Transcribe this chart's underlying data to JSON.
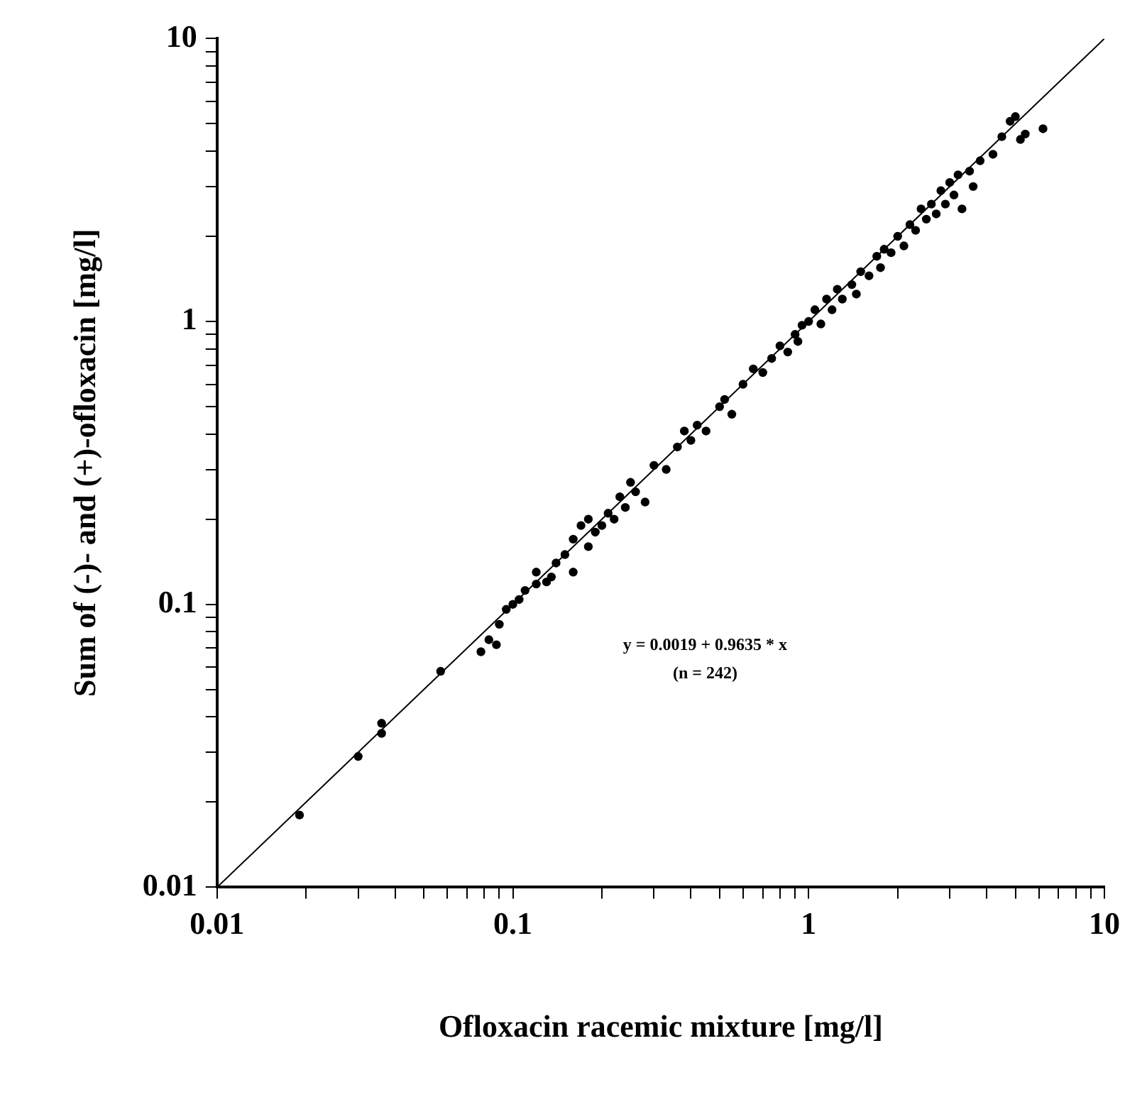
{
  "chart_data": {
    "type": "scatter",
    "xlabel": "Ofloxacin racemic mixture [mg/l]",
    "ylabel": "Sum of (-)- and (+)-ofloxacin [mg/l]",
    "annotations": [
      "y = 0.0019 + 0.9635 * x",
      "(n = 242)"
    ],
    "log": "xy",
    "grid": false,
    "legend": false,
    "marker": "circle",
    "xlim": [
      0.01,
      10
    ],
    "ylim": [
      0.01,
      10
    ],
    "xticks": [
      0.01,
      {
        "value": 0.02,
        "label": null
      },
      {
        "value": 0.03,
        "label": null
      },
      {
        "value": 0.04,
        "label": null
      },
      {
        "value": 0.05,
        "label": null
      },
      {
        "value": 0.06,
        "label": null
      },
      {
        "value": 0.07,
        "label": null
      },
      {
        "value": 0.08,
        "label": null
      },
      {
        "value": 0.09,
        "label": null
      },
      0.1,
      {
        "value": 0.2,
        "label": null
      },
      {
        "value": 0.3,
        "label": null
      },
      {
        "value": 0.4,
        "label": null
      },
      {
        "value": 0.5,
        "label": null
      },
      {
        "value": 0.6,
        "label": null
      },
      {
        "value": 0.7,
        "label": null
      },
      {
        "value": 0.8,
        "label": null
      },
      {
        "value": 0.9,
        "label": null
      },
      1,
      {
        "value": 2,
        "label": null
      },
      {
        "value": 3,
        "label": null
      },
      {
        "value": 4,
        "label": null
      },
      {
        "value": 5,
        "label": null
      },
      {
        "value": 6,
        "label": null
      },
      {
        "value": 7,
        "label": null
      },
      {
        "value": 8,
        "label": null
      },
      {
        "value": 9,
        "label": null
      },
      10
    ],
    "yticks": [
      0.01,
      {
        "value": 0.02,
        "label": null
      },
      {
        "value": 0.03,
        "label": null
      },
      {
        "value": 0.04,
        "label": null
      },
      {
        "value": 0.05,
        "label": null
      },
      {
        "value": 0.06,
        "label": null
      },
      {
        "value": 0.07,
        "label": null
      },
      {
        "value": 0.08,
        "label": null
      },
      {
        "value": 0.09,
        "label": null
      },
      0.1,
      {
        "value": 0.2,
        "label": null
      },
      {
        "value": 0.3,
        "label": null
      },
      {
        "value": 0.4,
        "label": null
      },
      {
        "value": 0.5,
        "label": null
      },
      {
        "value": 0.6,
        "label": null
      },
      {
        "value": 0.7,
        "label": null
      },
      {
        "value": 0.8,
        "label": null
      },
      {
        "value": 0.9,
        "label": null
      },
      1,
      {
        "value": 2,
        "label": null
      },
      {
        "value": 3,
        "label": null
      },
      {
        "value": 4,
        "label": null
      },
      {
        "value": 5,
        "label": null
      },
      {
        "value": 6,
        "label": null
      },
      {
        "value": 7,
        "label": null
      },
      {
        "value": 8,
        "label": null
      },
      {
        "value": 9,
        "label": null
      },
      10
    ],
    "series": [
      {
        "type": "scatter",
        "color": "#000000",
        "x": [
          0.019,
          0.03,
          0.036,
          0.036,
          0.057,
          0.078,
          0.083,
          0.088,
          0.09,
          0.095,
          0.1,
          0.105,
          0.11,
          0.12,
          0.12,
          0.13,
          0.135,
          0.14,
          0.15,
          0.16,
          0.16,
          0.17,
          0.18,
          0.18,
          0.19,
          0.2,
          0.21,
          0.22,
          0.23,
          0.24,
          0.25,
          0.26,
          0.28,
          0.3,
          0.33,
          0.36,
          0.38,
          0.4,
          0.42,
          0.45,
          0.5,
          0.52,
          0.55,
          0.6,
          0.65,
          0.7,
          0.75,
          0.8,
          0.85,
          0.9,
          0.92,
          0.95,
          1.0,
          1.05,
          1.1,
          1.15,
          1.2,
          1.25,
          1.3,
          1.4,
          1.45,
          1.5,
          1.6,
          1.7,
          1.75,
          1.8,
          1.9,
          2.0,
          2.1,
          2.2,
          2.3,
          2.4,
          2.5,
          2.6,
          2.7,
          2.8,
          2.9,
          3.0,
          3.1,
          3.2,
          3.3,
          3.5,
          3.6,
          3.8,
          4.2,
          4.5,
          4.8,
          5.0,
          5.2,
          5.4,
          6.2
        ],
        "values": [
          0.018,
          0.029,
          0.035,
          0.038,
          0.058,
          0.068,
          0.075,
          0.072,
          0.085,
          0.096,
          0.1,
          0.104,
          0.112,
          0.118,
          0.13,
          0.12,
          0.125,
          0.14,
          0.15,
          0.13,
          0.17,
          0.19,
          0.16,
          0.2,
          0.18,
          0.19,
          0.21,
          0.2,
          0.24,
          0.22,
          0.27,
          0.25,
          0.23,
          0.31,
          0.3,
          0.36,
          0.41,
          0.38,
          0.43,
          0.41,
          0.5,
          0.53,
          0.47,
          0.6,
          0.68,
          0.66,
          0.74,
          0.82,
          0.78,
          0.9,
          0.85,
          0.97,
          1.0,
          1.1,
          0.98,
          1.2,
          1.1,
          1.3,
          1.2,
          1.35,
          1.25,
          1.5,
          1.45,
          1.7,
          1.55,
          1.8,
          1.75,
          2.0,
          1.85,
          2.2,
          2.1,
          2.5,
          2.3,
          2.6,
          2.4,
          2.9,
          2.6,
          3.1,
          2.8,
          3.3,
          2.5,
          3.4,
          3.0,
          3.7,
          3.9,
          4.5,
          5.1,
          5.3,
          4.4,
          4.6,
          4.8
        ]
      },
      {
        "type": "line",
        "color": "#000000",
        "marker": "none",
        "line_style": "solid",
        "x": [
          0.01,
          10
        ],
        "values": [
          0.01,
          10
        ]
      }
    ]
  }
}
